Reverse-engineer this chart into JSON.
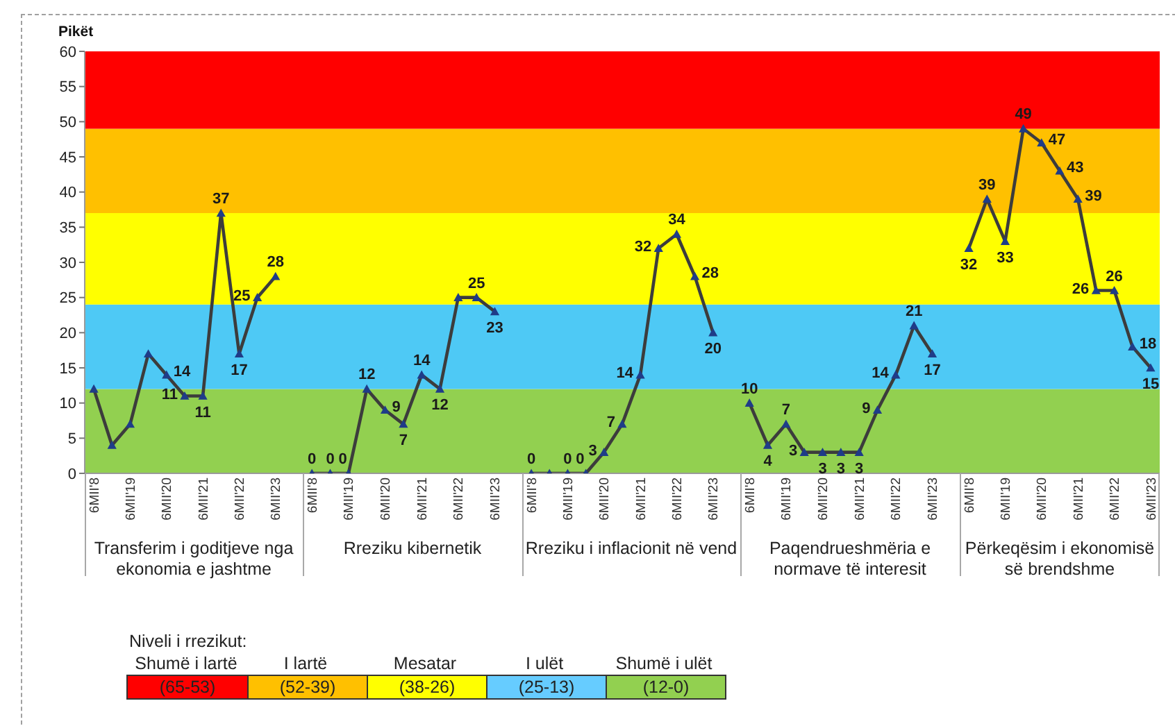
{
  "chart_data": [
    {
      "type": "line",
      "ylabel": "Pikët",
      "xlabel": "Transferim i goditjeve nga ekonomia e jashtme",
      "categories": [
        "6MII'8",
        null,
        "6MII'19",
        null,
        "6MII'20",
        null,
        "6MII'21",
        null,
        "6MII'22",
        null,
        "6MII'23"
      ],
      "values": [
        12,
        4,
        7,
        17,
        14,
        11,
        11,
        37,
        17,
        25,
        28
      ],
      "value_labels": [
        null,
        null,
        null,
        null,
        "14",
        "11",
        "11",
        "37",
        "17",
        "25",
        "28"
      ],
      "color": "#3c3c3c",
      "marker": "triangle",
      "ylim": [
        0,
        60
      ],
      "yticks": [
        0,
        5,
        10,
        15,
        20,
        25,
        30,
        35,
        40,
        45,
        50,
        55,
        60
      ],
      "bands": [
        {
          "axis": "y",
          "from": 0,
          "to": 12,
          "color": "#92d050"
        },
        {
          "axis": "y",
          "from": 12,
          "to": 24,
          "color": "#4ec9f5"
        },
        {
          "axis": "y",
          "from": 24,
          "to": 37,
          "color": "#ffff00"
        },
        {
          "axis": "y",
          "from": 37,
          "to": 49,
          "color": "#ffc000"
        },
        {
          "axis": "y",
          "from": 49,
          "to": 60,
          "color": "#ff0000"
        }
      ]
    },
    {
      "type": "line",
      "xlabel": "Rreziku kibernetik",
      "categories": [
        "6MII'8",
        null,
        "6MII'19",
        null,
        "6MII'20",
        null,
        "6MII'21",
        null,
        "6MII'22",
        null,
        "6MII'23"
      ],
      "values": [
        0,
        0,
        0,
        12,
        9,
        7,
        14,
        12,
        25,
        25,
        23
      ],
      "value_labels": [
        "0",
        "0",
        "0",
        "12",
        "9",
        "7",
        "14",
        "12",
        null,
        "25",
        "23"
      ],
      "color": "#3c3c3c",
      "marker": "triangle",
      "ylim": [
        0,
        60
      ],
      "yticks": [
        0,
        5,
        10,
        15,
        20,
        25,
        30,
        35,
        40,
        45,
        50,
        55,
        60
      ],
      "tick_labels": "x",
      "bands": [
        {
          "axis": "y",
          "from": 0,
          "to": 12,
          "color": "#92d050"
        },
        {
          "axis": "y",
          "from": 12,
          "to": 24,
          "color": "#4ec9f5"
        },
        {
          "axis": "y",
          "from": 24,
          "to": 37,
          "color": "#ffff00"
        },
        {
          "axis": "y",
          "from": 37,
          "to": 49,
          "color": "#ffc000"
        },
        {
          "axis": "y",
          "from": 49,
          "to": 60,
          "color": "#ff0000"
        }
      ]
    },
    {
      "type": "line",
      "xlabel": "Rreziku i inflacionit në vend",
      "categories": [
        "6MII'8",
        null,
        "6MII'19",
        null,
        "6MII'20",
        null,
        "6MII'21",
        null,
        "6MII'22",
        null,
        "6MII'23"
      ],
      "values": [
        0,
        0,
        0,
        0,
        3,
        7,
        14,
        32,
        34,
        28,
        20
      ],
      "value_labels": [
        "0",
        null,
        "0",
        "0",
        "3",
        "7",
        "14",
        "32",
        "34",
        "28",
        "20"
      ],
      "color": "#3c3c3c",
      "marker": "triangle",
      "ylim": [
        0,
        60
      ],
      "yticks": [
        0,
        5,
        10,
        15,
        20,
        25,
        30,
        35,
        40,
        45,
        50,
        55,
        60
      ],
      "tick_labels": "x",
      "bands": [
        {
          "axis": "y",
          "from": 0,
          "to": 12,
          "color": "#92d050"
        },
        {
          "axis": "y",
          "from": 12,
          "to": 24,
          "color": "#4ec9f5"
        },
        {
          "axis": "y",
          "from": 24,
          "to": 37,
          "color": "#ffff00"
        },
        {
          "axis": "y",
          "from": 37,
          "to": 49,
          "color": "#ffc000"
        },
        {
          "axis": "y",
          "from": 49,
          "to": 60,
          "color": "#ff0000"
        }
      ]
    },
    {
      "type": "line",
      "xlabel": "Paqendrueshmëria e normave të interesit",
      "categories": [
        "6MII'8",
        null,
        "6MII'19",
        null,
        "6MII'20",
        null,
        "6MII'21",
        null,
        "6MII'22",
        null,
        "6MII'23"
      ],
      "values": [
        10,
        4,
        7,
        3,
        3,
        3,
        3,
        9,
        14,
        21,
        17
      ],
      "value_labels": [
        "10",
        "4",
        "7",
        "3",
        "3",
        "3",
        "3",
        "9",
        "14",
        "21",
        "17"
      ],
      "color": "#3c3c3c",
      "marker": "triangle",
      "ylim": [
        0,
        60
      ],
      "yticks": [
        0,
        5,
        10,
        15,
        20,
        25,
        30,
        35,
        40,
        45,
        50,
        55,
        60
      ],
      "tick_labels": "x",
      "bands": [
        {
          "axis": "y",
          "from": 0,
          "to": 12,
          "color": "#92d050"
        },
        {
          "axis": "y",
          "from": 12,
          "to": 24,
          "color": "#4ec9f5"
        },
        {
          "axis": "y",
          "from": 24,
          "to": 37,
          "color": "#ffff00"
        },
        {
          "axis": "y",
          "from": 37,
          "to": 49,
          "color": "#ffc000"
        },
        {
          "axis": "y",
          "from": 49,
          "to": 60,
          "color": "#ff0000"
        }
      ]
    },
    {
      "type": "line",
      "xlabel": "Përkeqësim i ekonomisë së brendshme",
      "categories": [
        "6MII'8",
        null,
        "6MII'19",
        null,
        "6MII'20",
        null,
        "6MII'21",
        null,
        "6MII'22",
        null,
        "6MII'23"
      ],
      "values": [
        32,
        39,
        33,
        49,
        47,
        43,
        39,
        26,
        26,
        18,
        15
      ],
      "value_labels": [
        "32",
        "39",
        "33",
        "49",
        "47",
        "43",
        "39",
        "26",
        "26",
        "18",
        "15"
      ],
      "color": "#3c3c3c",
      "marker": "triangle",
      "ylim": [
        0,
        60
      ],
      "yticks": [
        0,
        5,
        10,
        15,
        20,
        25,
        30,
        35,
        40,
        45,
        50,
        55,
        60
      ],
      "tick_labels": "x",
      "bands": [
        {
          "axis": "y",
          "from": 0,
          "to": 12,
          "color": "#92d050"
        },
        {
          "axis": "y",
          "from": 12,
          "to": 24,
          "color": "#4ec9f5"
        },
        {
          "axis": "y",
          "from": 24,
          "to": 37,
          "color": "#ffff00"
        },
        {
          "axis": "y",
          "from": 37,
          "to": 49,
          "color": "#ffc000"
        },
        {
          "axis": "y",
          "from": 49,
          "to": 60,
          "color": "#ff0000"
        }
      ]
    },
    {
      "type": "other",
      "title": "Niveli i rrezikut:",
      "categories": [
        "Shumë i lartë",
        "I lartë",
        "Mesatar",
        "I ulët",
        "Shumë i ulët"
      ],
      "colors": [
        "#ff0000",
        "#ffc000",
        "#ffff00",
        "#66ccff",
        "#92d050"
      ],
      "annotations": [
        "(65-53)",
        "(52-39)",
        "(38-26)",
        "(25-13)",
        "(12-0)"
      ]
    }
  ]
}
